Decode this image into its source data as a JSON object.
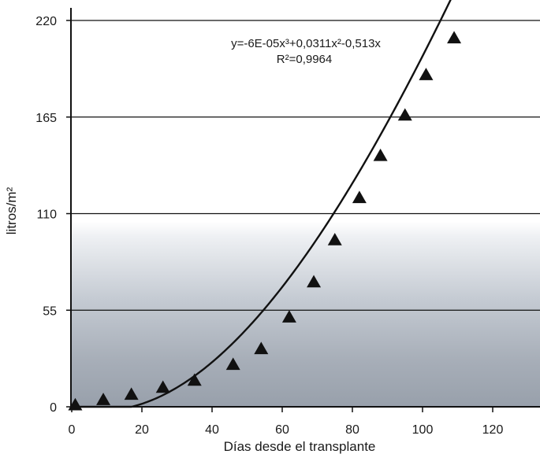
{
  "chart_data": {
    "type": "scatter",
    "xlabel": "Días desde el transplante",
    "ylabel": "litros/m²",
    "xlim": [
      0,
      125
    ],
    "ylim": [
      0,
      220
    ],
    "x_ticks": [
      0,
      20,
      40,
      60,
      80,
      100,
      120
    ],
    "y_ticks": [
      0,
      55,
      110,
      165,
      220
    ],
    "x_tick_labels": [
      "0",
      "20",
      "40",
      "60",
      "80",
      "100",
      "120"
    ],
    "y_tick_labels": [
      "0",
      "55",
      "110",
      "165",
      "220"
    ],
    "grid": "horizontal",
    "series": [
      {
        "marker": "triangle",
        "points": [
          {
            "x": 1,
            "y": 1
          },
          {
            "x": 9,
            "y": 4
          },
          {
            "x": 17,
            "y": 7
          },
          {
            "x": 26,
            "y": 11
          },
          {
            "x": 35,
            "y": 15
          },
          {
            "x": 46,
            "y": 24
          },
          {
            "x": 54,
            "y": 33
          },
          {
            "x": 62,
            "y": 51
          },
          {
            "x": 69,
            "y": 71
          },
          {
            "x": 75,
            "y": 95
          },
          {
            "x": 82,
            "y": 119
          },
          {
            "x": 88,
            "y": 143
          },
          {
            "x": 95,
            "y": 166
          },
          {
            "x": 101,
            "y": 189
          },
          {
            "x": 109,
            "y": 210
          }
        ]
      }
    ],
    "trendline": {
      "type": "polynomial",
      "equation": "y=-6E-05x³+0,0311x²-0,513x",
      "r_squared": "R²=0,9964",
      "coefficients": {
        "a3": -6e-05,
        "a2": 0.0311,
        "a1": -0.513,
        "a0": 0
      },
      "x_range": [
        0,
        109
      ]
    },
    "colors": {
      "line": "#111111",
      "marker": "#111111",
      "grid": "#111111"
    }
  }
}
